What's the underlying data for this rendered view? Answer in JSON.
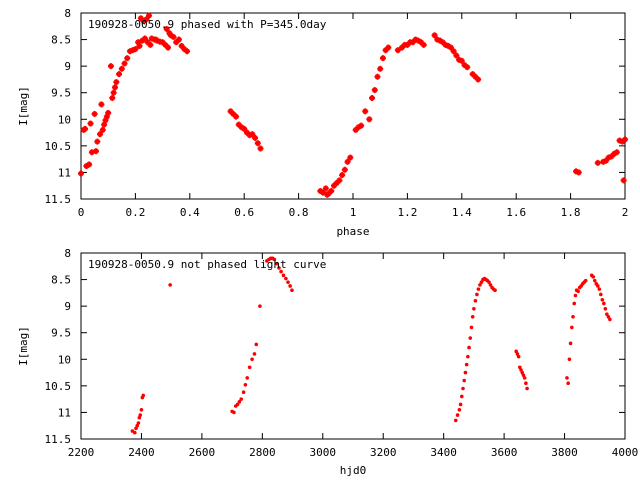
{
  "colors": {
    "points": "#ff0000",
    "axes": "#000000",
    "background": "#ffffff"
  },
  "chart_data": [
    {
      "type": "scatter",
      "title": "190928-0050.9 phased with P=345.0day",
      "xlabel": "phase",
      "ylabel": "I[mag]",
      "xlim": [
        0,
        2
      ],
      "ylim": [
        11.5,
        8
      ],
      "y_inverted": true,
      "grid": false,
      "marker": "cross",
      "x_ticks": [
        "0",
        "0.2",
        "0.4",
        "0.6",
        "0.8",
        "1",
        "1.2",
        "1.4",
        "1.6",
        "1.8",
        "2"
      ],
      "y_ticks": [
        "8",
        "8.5",
        "9",
        "9.5",
        "10",
        "10.5",
        "11",
        "11.5"
      ],
      "series": [
        {
          "points": [
            [
              0.0,
              11.02
            ],
            [
              0.01,
              10.2
            ],
            [
              0.015,
              10.18
            ],
            [
              0.02,
              10.88
            ],
            [
              0.03,
              10.85
            ],
            [
              0.035,
              10.08
            ],
            [
              0.04,
              10.62
            ],
            [
              0.05,
              9.9
            ],
            [
              0.055,
              10.6
            ],
            [
              0.06,
              10.42
            ],
            [
              0.07,
              10.28
            ],
            [
              0.075,
              9.72
            ],
            [
              0.08,
              10.2
            ],
            [
              0.085,
              10.1
            ],
            [
              0.09,
              10.02
            ],
            [
              0.095,
              9.95
            ],
            [
              0.1,
              9.88
            ],
            [
              0.11,
              9.0
            ],
            [
              0.115,
              9.6
            ],
            [
              0.12,
              9.5
            ],
            [
              0.125,
              9.4
            ],
            [
              0.13,
              9.3
            ],
            [
              0.14,
              9.15
            ],
            [
              0.15,
              9.05
            ],
            [
              0.16,
              8.95
            ],
            [
              0.17,
              8.85
            ],
            [
              0.18,
              8.72
            ],
            [
              0.19,
              8.7
            ],
            [
              0.2,
              8.68
            ],
            [
              0.21,
              8.55
            ],
            [
              0.215,
              8.62
            ],
            [
              0.22,
              8.1
            ],
            [
              0.225,
              8.52
            ],
            [
              0.23,
              8.15
            ],
            [
              0.235,
              8.48
            ],
            [
              0.24,
              8.12
            ],
            [
              0.245,
              8.55
            ],
            [
              0.25,
              8.05
            ],
            [
              0.255,
              8.6
            ],
            [
              0.26,
              8.48
            ],
            [
              0.27,
              8.5
            ],
            [
              0.275,
              8.5
            ],
            [
              0.28,
              8.52
            ],
            [
              0.29,
              8.54
            ],
            [
              0.3,
              8.55
            ],
            [
              0.31,
              8.6
            ],
            [
              0.315,
              8.3
            ],
            [
              0.32,
              8.65
            ],
            [
              0.325,
              8.38
            ],
            [
              0.33,
              8.42
            ],
            [
              0.34,
              8.45
            ],
            [
              0.35,
              8.55
            ],
            [
              0.36,
              8.5
            ],
            [
              0.37,
              8.62
            ],
            [
              0.38,
              8.68
            ],
            [
              0.39,
              8.72
            ],
            [
              0.55,
              9.85
            ],
            [
              0.56,
              9.9
            ],
            [
              0.57,
              9.95
            ],
            [
              0.58,
              10.1
            ],
            [
              0.59,
              10.15
            ],
            [
              0.6,
              10.18
            ],
            [
              0.61,
              10.25
            ],
            [
              0.62,
              10.3
            ],
            [
              0.63,
              10.28
            ],
            [
              0.64,
              10.35
            ],
            [
              0.65,
              10.45
            ],
            [
              0.66,
              10.55
            ],
            [
              0.88,
              11.35
            ],
            [
              0.89,
              11.38
            ],
            [
              0.9,
              11.3
            ],
            [
              0.905,
              11.42
            ],
            [
              0.91,
              11.4
            ],
            [
              0.92,
              11.35
            ],
            [
              0.93,
              11.25
            ],
            [
              0.94,
              11.2
            ],
            [
              0.95,
              11.15
            ],
            [
              0.96,
              11.05
            ],
            [
              0.97,
              10.95
            ],
            [
              0.98,
              10.8
            ],
            [
              0.99,
              10.72
            ],
            [
              1.01,
              10.2
            ],
            [
              1.02,
              10.15
            ],
            [
              1.03,
              10.12
            ],
            [
              1.045,
              9.85
            ],
            [
              1.06,
              10.0
            ],
            [
              1.07,
              9.6
            ],
            [
              1.08,
              9.45
            ],
            [
              1.09,
              9.2
            ],
            [
              1.1,
              9.05
            ],
            [
              1.11,
              8.85
            ],
            [
              1.12,
              8.7
            ],
            [
              1.13,
              8.65
            ],
            [
              1.165,
              8.7
            ],
            [
              1.18,
              8.65
            ],
            [
              1.19,
              8.6
            ],
            [
              1.2,
              8.6
            ],
            [
              1.21,
              8.55
            ],
            [
              1.22,
              8.55
            ],
            [
              1.23,
              8.5
            ],
            [
              1.24,
              8.52
            ],
            [
              1.25,
              8.55
            ],
            [
              1.26,
              8.6
            ],
            [
              1.3,
              8.42
            ],
            [
              1.31,
              8.5
            ],
            [
              1.32,
              8.52
            ],
            [
              1.33,
              8.55
            ],
            [
              1.34,
              8.6
            ],
            [
              1.35,
              8.62
            ],
            [
              1.36,
              8.65
            ],
            [
              1.37,
              8.72
            ],
            [
              1.38,
              8.8
            ],
            [
              1.39,
              8.88
            ],
            [
              1.4,
              8.9
            ],
            [
              1.41,
              8.98
            ],
            [
              1.42,
              9.02
            ],
            [
              1.44,
              9.15
            ],
            [
              1.45,
              9.2
            ],
            [
              1.46,
              9.25
            ],
            [
              1.82,
              10.98
            ],
            [
              1.83,
              11.0
            ],
            [
              1.9,
              10.82
            ],
            [
              1.92,
              10.8
            ],
            [
              1.93,
              10.78
            ],
            [
              1.94,
              10.72
            ],
            [
              1.95,
              10.7
            ],
            [
              1.96,
              10.65
            ],
            [
              1.97,
              10.62
            ],
            [
              1.98,
              10.4
            ],
            [
              1.99,
              10.42
            ],
            [
              1.995,
              11.15
            ],
            [
              2.0,
              10.38
            ]
          ]
        }
      ]
    },
    {
      "type": "scatter",
      "title": "190928-0050.9 not phased light curve",
      "xlabel": "hjd0",
      "ylabel": "I[mag]",
      "xlim": [
        2200,
        4000
      ],
      "ylim": [
        11.5,
        8
      ],
      "y_inverted": true,
      "grid": false,
      "marker": "dot",
      "x_ticks": [
        "2200",
        "2400",
        "2600",
        "2800",
        "3000",
        "3200",
        "3400",
        "3600",
        "3800",
        "4000"
      ],
      "y_ticks": [
        "8",
        "8.5",
        "9",
        "9.5",
        "10",
        "10.5",
        "11",
        "11.5"
      ],
      "series": [
        {
          "points": [
            [
              2370,
              11.35
            ],
            [
              2378,
              11.38
            ],
            [
              2382,
              11.3
            ],
            [
              2386,
              11.25
            ],
            [
              2390,
              11.2
            ],
            [
              2393,
              11.1
            ],
            [
              2396,
              11.05
            ],
            [
              2400,
              10.95
            ],
            [
              2403,
              10.72
            ],
            [
              2406,
              10.68
            ],
            [
              2495,
              8.6
            ],
            [
              2700,
              10.98
            ],
            [
              2706,
              11.0
            ],
            [
              2712,
              10.88
            ],
            [
              2718,
              10.85
            ],
            [
              2724,
              10.8
            ],
            [
              2730,
              10.75
            ],
            [
              2738,
              10.62
            ],
            [
              2744,
              10.48
            ],
            [
              2750,
              10.35
            ],
            [
              2758,
              10.15
            ],
            [
              2766,
              10.0
            ],
            [
              2774,
              9.9
            ],
            [
              2780,
              9.72
            ],
            [
              2792,
              9.0
            ],
            [
              2815,
              8.15
            ],
            [
              2822,
              8.12
            ],
            [
              2828,
              8.1
            ],
            [
              2834,
              8.1
            ],
            [
              2840,
              8.12
            ],
            [
              2848,
              8.2
            ],
            [
              2855,
              8.28
            ],
            [
              2862,
              8.35
            ],
            [
              2870,
              8.42
            ],
            [
              2878,
              8.48
            ],
            [
              2885,
              8.55
            ],
            [
              2892,
              8.62
            ],
            [
              2898,
              8.7
            ],
            [
              3440,
              11.15
            ],
            [
              3446,
              11.05
            ],
            [
              3452,
              10.95
            ],
            [
              3456,
              10.85
            ],
            [
              3460,
              10.7
            ],
            [
              3464,
              10.55
            ],
            [
              3468,
              10.4
            ],
            [
              3472,
              10.25
            ],
            [
              3476,
              10.1
            ],
            [
              3480,
              9.95
            ],
            [
              3484,
              9.78
            ],
            [
              3488,
              9.6
            ],
            [
              3492,
              9.4
            ],
            [
              3496,
              9.2
            ],
            [
              3500,
              9.05
            ],
            [
              3505,
              8.9
            ],
            [
              3510,
              8.78
            ],
            [
              3515,
              8.68
            ],
            [
              3520,
              8.6
            ],
            [
              3525,
              8.55
            ],
            [
              3530,
              8.5
            ],
            [
              3535,
              8.48
            ],
            [
              3540,
              8.5
            ],
            [
              3545,
              8.52
            ],
            [
              3550,
              8.55
            ],
            [
              3555,
              8.6
            ],
            [
              3560,
              8.65
            ],
            [
              3565,
              8.68
            ],
            [
              3570,
              8.7
            ],
            [
              3640,
              9.85
            ],
            [
              3644,
              9.9
            ],
            [
              3648,
              9.95
            ],
            [
              3652,
              10.15
            ],
            [
              3656,
              10.2
            ],
            [
              3660,
              10.25
            ],
            [
              3664,
              10.3
            ],
            [
              3668,
              10.35
            ],
            [
              3672,
              10.45
            ],
            [
              3676,
              10.55
            ],
            [
              3808,
              10.35
            ],
            [
              3812,
              10.45
            ],
            [
              3816,
              10.0
            ],
            [
              3820,
              9.7
            ],
            [
              3824,
              9.4
            ],
            [
              3828,
              9.2
            ],
            [
              3832,
              8.95
            ],
            [
              3836,
              8.8
            ],
            [
              3840,
              8.7
            ],
            [
              3845,
              8.72
            ],
            [
              3850,
              8.65
            ],
            [
              3855,
              8.62
            ],
            [
              3860,
              8.58
            ],
            [
              3865,
              8.55
            ],
            [
              3870,
              8.52
            ],
            [
              3890,
              8.42
            ],
            [
              3895,
              8.45
            ],
            [
              3900,
              8.52
            ],
            [
              3905,
              8.58
            ],
            [
              3910,
              8.62
            ],
            [
              3915,
              8.68
            ],
            [
              3920,
              8.78
            ],
            [
              3925,
              8.88
            ],
            [
              3930,
              8.95
            ],
            [
              3935,
              9.05
            ],
            [
              3940,
              9.15
            ],
            [
              3945,
              9.2
            ],
            [
              3950,
              9.25
            ]
          ]
        }
      ]
    }
  ]
}
